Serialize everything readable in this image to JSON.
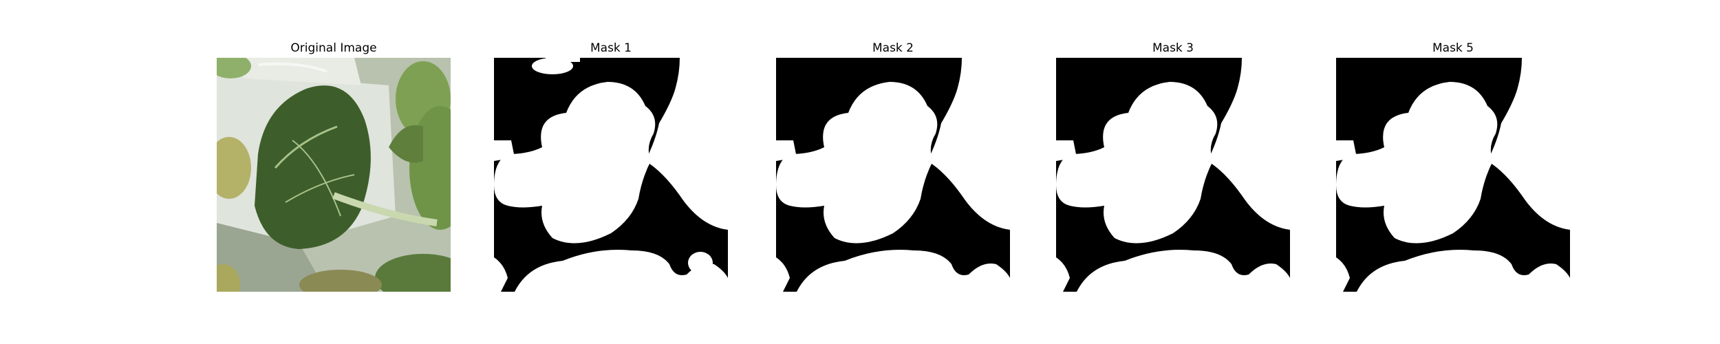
{
  "figure": {
    "panels": [
      {
        "title": "Original Image",
        "kind": "photo"
      },
      {
        "title": "Mask 1",
        "kind": "mask"
      },
      {
        "title": "Mask 2",
        "kind": "mask"
      },
      {
        "title": "Mask 3",
        "kind": "mask"
      },
      {
        "title": "Mask 5",
        "kind": "mask"
      }
    ]
  },
  "colors": {
    "background": "#ffffff",
    "mask_foreground": "#ffffff",
    "mask_background": "#000000",
    "leaf_dark": "#3d5e2a",
    "leaf_light": "#7fa35a",
    "pot_white": "#dfe4dc"
  }
}
